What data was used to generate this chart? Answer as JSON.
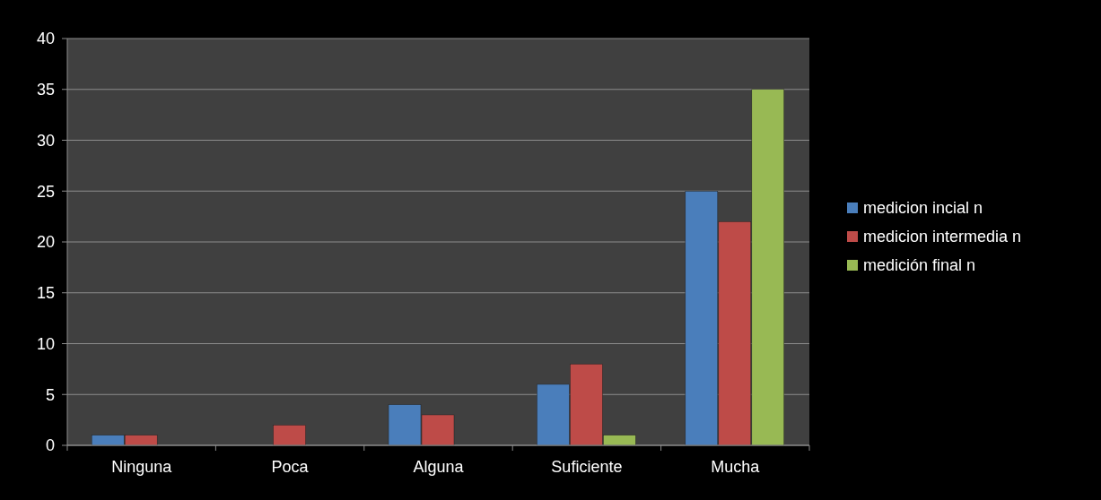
{
  "chart_data": {
    "type": "bar",
    "categories": [
      "Ninguna",
      "Poca",
      "Alguna",
      "Suficiente",
      "Mucha"
    ],
    "series": [
      {
        "name": "medicion incial n",
        "color": "#4a7ebb",
        "values": [
          1,
          null,
          4,
          6,
          25
        ]
      },
      {
        "name": "medicion intermedia n",
        "color": "#be4b48",
        "values": [
          1,
          2,
          3,
          8,
          22
        ]
      },
      {
        "name": "medición final n",
        "color": "#98b954",
        "values": [
          null,
          null,
          null,
          1,
          35
        ]
      }
    ],
    "ylim": [
      0,
      40
    ],
    "yticks": [
      0,
      5,
      10,
      15,
      20,
      25,
      30,
      35,
      40
    ],
    "grid": "y",
    "legend": "right"
  }
}
